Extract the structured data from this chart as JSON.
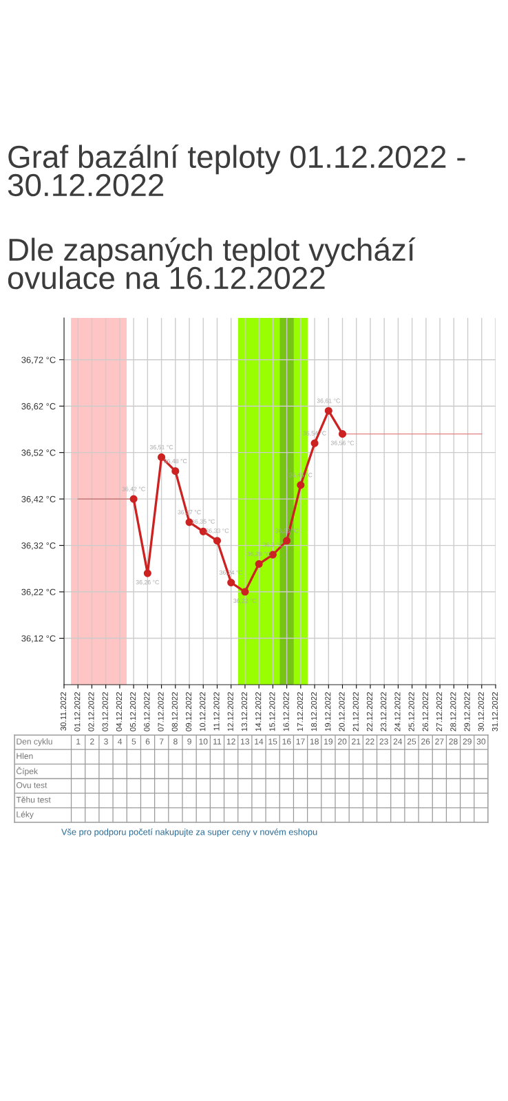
{
  "chart_data": [
    {
      "type": "line",
      "title": "Graf bazální teploty 01.12.2022 - 30.12.2022",
      "subtitle": "Dle zapsaných teplot vychází ovulace na 16.12.2022",
      "xlim": [
        "2022-11-30",
        "2022-12-31"
      ],
      "xticks": [
        {
          "value": "2022-11-30",
          "label": "30.11.2022"
        },
        {
          "value": "2022-12-01",
          "label": "01.12.2022"
        },
        {
          "value": "2022-12-02",
          "label": "02.12.2022"
        },
        {
          "value": "2022-12-03",
          "label": "03.12.2022"
        },
        {
          "value": "2022-12-04",
          "label": "04.12.2022"
        },
        {
          "value": "2022-12-05",
          "label": "05.12.2022"
        },
        {
          "value": "2022-12-06",
          "label": "06.12.2022"
        },
        {
          "value": "2022-12-07",
          "label": "07.12.2022"
        },
        {
          "value": "2022-12-08",
          "label": "08.12.2022"
        },
        {
          "value": "2022-12-09",
          "label": "09.12.2022"
        },
        {
          "value": "2022-12-10",
          "label": "10.12.2022"
        },
        {
          "value": "2022-12-11",
          "label": "11.12.2022"
        },
        {
          "value": "2022-12-12",
          "label": "12.12.2022"
        },
        {
          "value": "2022-12-13",
          "label": "13.12.2022"
        },
        {
          "value": "2022-12-14",
          "label": "14.12.2022"
        },
        {
          "value": "2022-12-15",
          "label": "15.12.2022"
        },
        {
          "value": "2022-12-16",
          "label": "16.12.2022"
        },
        {
          "value": "2022-12-17",
          "label": "17.12.2022"
        },
        {
          "value": "2022-12-18",
          "label": "18.12.2022"
        },
        {
          "value": "2022-12-19",
          "label": "19.12.2022"
        },
        {
          "value": "2022-12-20",
          "label": "20.12.2022"
        },
        {
          "value": "2022-12-21",
          "label": "21.12.2022"
        },
        {
          "value": "2022-12-22",
          "label": "22.12.2022"
        },
        {
          "value": "2022-12-23",
          "label": "23.12.2022"
        },
        {
          "value": "2022-12-24",
          "label": "24.12.2022"
        },
        {
          "value": "2022-12-25",
          "label": "25.12.2022"
        },
        {
          "value": "2022-12-26",
          "label": "26.12.2022"
        },
        {
          "value": "2022-12-27",
          "label": "27.12.2022"
        },
        {
          "value": "2022-12-28",
          "label": "28.12.2022"
        },
        {
          "value": "2022-12-29",
          "label": "29.12.2022"
        },
        {
          "value": "2022-12-30",
          "label": "30.12.2022"
        },
        {
          "value": "2022-12-31",
          "label": "31.12.2022"
        }
      ],
      "ylim": [
        36.02,
        36.81
      ],
      "yticks": [
        {
          "value": 36.12,
          "label": "36,12 °C"
        },
        {
          "value": 36.22,
          "label": "36,22 °C"
        },
        {
          "value": 36.32,
          "label": "36,32 °C"
        },
        {
          "value": 36.42,
          "label": "36,42 °C"
        },
        {
          "value": 36.52,
          "label": "36,52 °C"
        },
        {
          "value": 36.62,
          "label": "36,62 °C"
        },
        {
          "value": 36.72,
          "label": "36,72 °C"
        }
      ],
      "grid": true,
      "marker": "circle",
      "line_style": "solid",
      "bands": [
        {
          "axis": "x",
          "from": "2022-11-30T12:00",
          "to": "2022-12-04T12:00",
          "color": "#ffc4c4"
        },
        {
          "axis": "x",
          "from": "2022-12-12T12:00",
          "to": "2022-12-17T12:00",
          "color": "#99ff00"
        },
        {
          "axis": "x",
          "from": "2022-12-15T12:00",
          "to": "2022-12-16T12:00",
          "color": "#77c417"
        }
      ],
      "series": [
        {
          "color": "#cc2222",
          "x": [
            "2022-12-05",
            "2022-12-06",
            "2022-12-07",
            "2022-12-08",
            "2022-12-09",
            "2022-12-10",
            "2022-12-11",
            "2022-12-12",
            "2022-12-13",
            "2022-12-14",
            "2022-12-15",
            "2022-12-16",
            "2022-12-17",
            "2022-12-18",
            "2022-12-19",
            "2022-12-20"
          ],
          "values": [
            36.42,
            36.26,
            36.51,
            36.48,
            36.37,
            36.35,
            36.33,
            36.24,
            36.22,
            36.28,
            36.3,
            36.33,
            36.45,
            36.54,
            36.61,
            36.56
          ],
          "value_labels": [
            "36,42 °C",
            "36,26 °C",
            "36,51 °C",
            "36,48 °C",
            "36,37 °C",
            "36,35 °C",
            "36,33 °C",
            "36,24 °C",
            "36,22 °C",
            "36,28 °C",
            "36,3 °C",
            "36,33 °C",
            "36,45 °C",
            "36,54 °C",
            "36,61 °C",
            "36,56 °C"
          ]
        },
        {
          "color": "#c86464",
          "marker": "none",
          "x": [
            "2022-12-01",
            "2022-12-02",
            "2022-12-03",
            "2022-12-04",
            "2022-12-05"
          ],
          "values": [
            36.42,
            36.42,
            36.42,
            36.42,
            36.42
          ]
        },
        {
          "color": "#e08080",
          "marker": "none",
          "x": [
            "2022-12-20",
            "2022-12-21",
            "2022-12-22",
            "2022-12-23",
            "2022-12-24",
            "2022-12-25",
            "2022-12-26",
            "2022-12-27",
            "2022-12-28",
            "2022-12-29",
            "2022-12-30"
          ],
          "values": [
            36.56,
            36.56,
            36.56,
            36.56,
            36.56,
            36.56,
            36.56,
            36.56,
            36.56,
            36.56,
            36.56
          ]
        }
      ]
    },
    {
      "type": "heatmap",
      "xlabel": "Den cyklu",
      "categories": [
        "1",
        "2",
        "3",
        "4",
        "5",
        "6",
        "7",
        "8",
        "9",
        "10",
        "11",
        "12",
        "13",
        "14",
        "15",
        "16",
        "17",
        "18",
        "19",
        "20",
        "21",
        "22",
        "23",
        "24",
        "25",
        "26",
        "27",
        "28",
        "29",
        "30"
      ],
      "y_categories": [
        "Hlen",
        "Čípek",
        "Ovu test",
        "Těhu test",
        "Léky"
      ],
      "grid": true,
      "cells": [
        [
          null,
          null,
          null,
          null,
          null,
          null,
          null,
          null,
          null,
          null,
          null,
          null,
          null,
          null,
          null,
          null,
          null,
          null,
          null,
          null,
          null,
          null,
          null,
          null,
          null,
          null,
          null,
          null,
          null,
          null
        ],
        [
          null,
          null,
          null,
          null,
          null,
          null,
          null,
          null,
          null,
          null,
          null,
          null,
          null,
          null,
          null,
          null,
          null,
          null,
          null,
          null,
          null,
          null,
          null,
          null,
          null,
          null,
          null,
          null,
          null,
          null
        ],
        [
          null,
          null,
          null,
          null,
          null,
          null,
          null,
          null,
          null,
          null,
          null,
          null,
          null,
          null,
          null,
          null,
          null,
          null,
          null,
          null,
          null,
          null,
          null,
          null,
          null,
          null,
          null,
          null,
          null,
          null
        ],
        [
          null,
          null,
          null,
          null,
          null,
          null,
          null,
          null,
          null,
          null,
          null,
          null,
          null,
          null,
          null,
          null,
          null,
          null,
          null,
          null,
          null,
          null,
          null,
          null,
          null,
          null,
          null,
          null,
          null,
          null
        ],
        [
          null,
          null,
          null,
          null,
          null,
          null,
          null,
          null,
          null,
          null,
          null,
          null,
          null,
          null,
          null,
          null,
          null,
          null,
          null,
          null,
          null,
          null,
          null,
          null,
          null,
          null,
          null,
          null,
          null,
          null
        ]
      ],
      "annotations": [
        "Vše pro podporu početí nakupujte za super ceny v novém eshopu"
      ]
    }
  ]
}
